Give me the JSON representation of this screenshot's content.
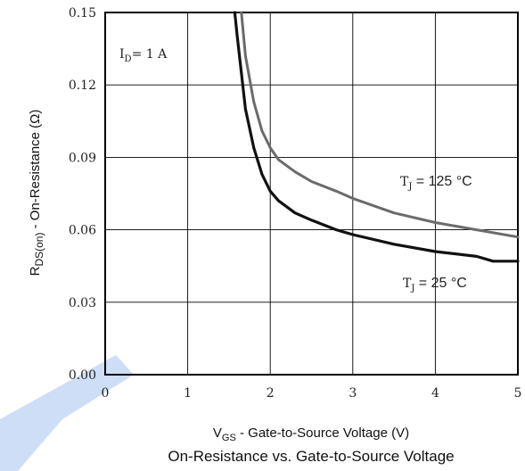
{
  "chart_data": {
    "type": "line",
    "title": "On-Resistance vs. Gate-to-Source Voltage",
    "xlabel": {
      "main": "V",
      "sub": "GS",
      "rest": " - Gate-to-Source Voltage (V)"
    },
    "ylabel": {
      "main": "R",
      "sub": "DS(on)",
      "rest": " - On-Resistance (Ω)"
    },
    "xlim": [
      0,
      5
    ],
    "ylim": [
      0,
      0.15
    ],
    "x_ticks": [
      "0",
      "1",
      "2",
      "3",
      "4",
      "5"
    ],
    "y_ticks": [
      "0.00",
      "0.03",
      "0.06",
      "0.09",
      "0.12",
      "0.15"
    ],
    "grid": true,
    "annotation": {
      "main": "I",
      "sub": "D",
      "rest": "= 1 A"
    },
    "series": [
      {
        "name": "T_J = 125 °C",
        "label": {
          "main": "T",
          "sub": "J",
          "rest": " = 125 °C"
        },
        "color": "#6b6b6b",
        "points": [
          [
            1.65,
            0.15
          ],
          [
            1.7,
            0.132
          ],
          [
            1.8,
            0.113
          ],
          [
            1.9,
            0.101
          ],
          [
            2.0,
            0.094
          ],
          [
            2.1,
            0.089
          ],
          [
            2.3,
            0.084
          ],
          [
            2.5,
            0.08
          ],
          [
            2.8,
            0.076
          ],
          [
            3.0,
            0.073
          ],
          [
            3.5,
            0.067
          ],
          [
            4.0,
            0.063
          ],
          [
            4.5,
            0.06
          ],
          [
            5.0,
            0.057
          ]
        ]
      },
      {
        "name": "T_J = 25 °C",
        "label": {
          "main": "T",
          "sub": "J",
          "rest": " = 25 °C"
        },
        "color": "#111111",
        "points": [
          [
            1.57,
            0.15
          ],
          [
            1.6,
            0.14
          ],
          [
            1.65,
            0.125
          ],
          [
            1.7,
            0.11
          ],
          [
            1.8,
            0.094
          ],
          [
            1.9,
            0.083
          ],
          [
            2.0,
            0.076
          ],
          [
            2.1,
            0.072
          ],
          [
            2.3,
            0.067
          ],
          [
            2.5,
            0.064
          ],
          [
            2.8,
            0.06
          ],
          [
            3.0,
            0.058
          ],
          [
            3.5,
            0.054
          ],
          [
            4.0,
            0.051
          ],
          [
            4.5,
            0.049
          ],
          [
            4.7,
            0.047
          ],
          [
            5.0,
            0.047
          ]
        ]
      }
    ]
  },
  "watermark_color": "#3d7be0"
}
